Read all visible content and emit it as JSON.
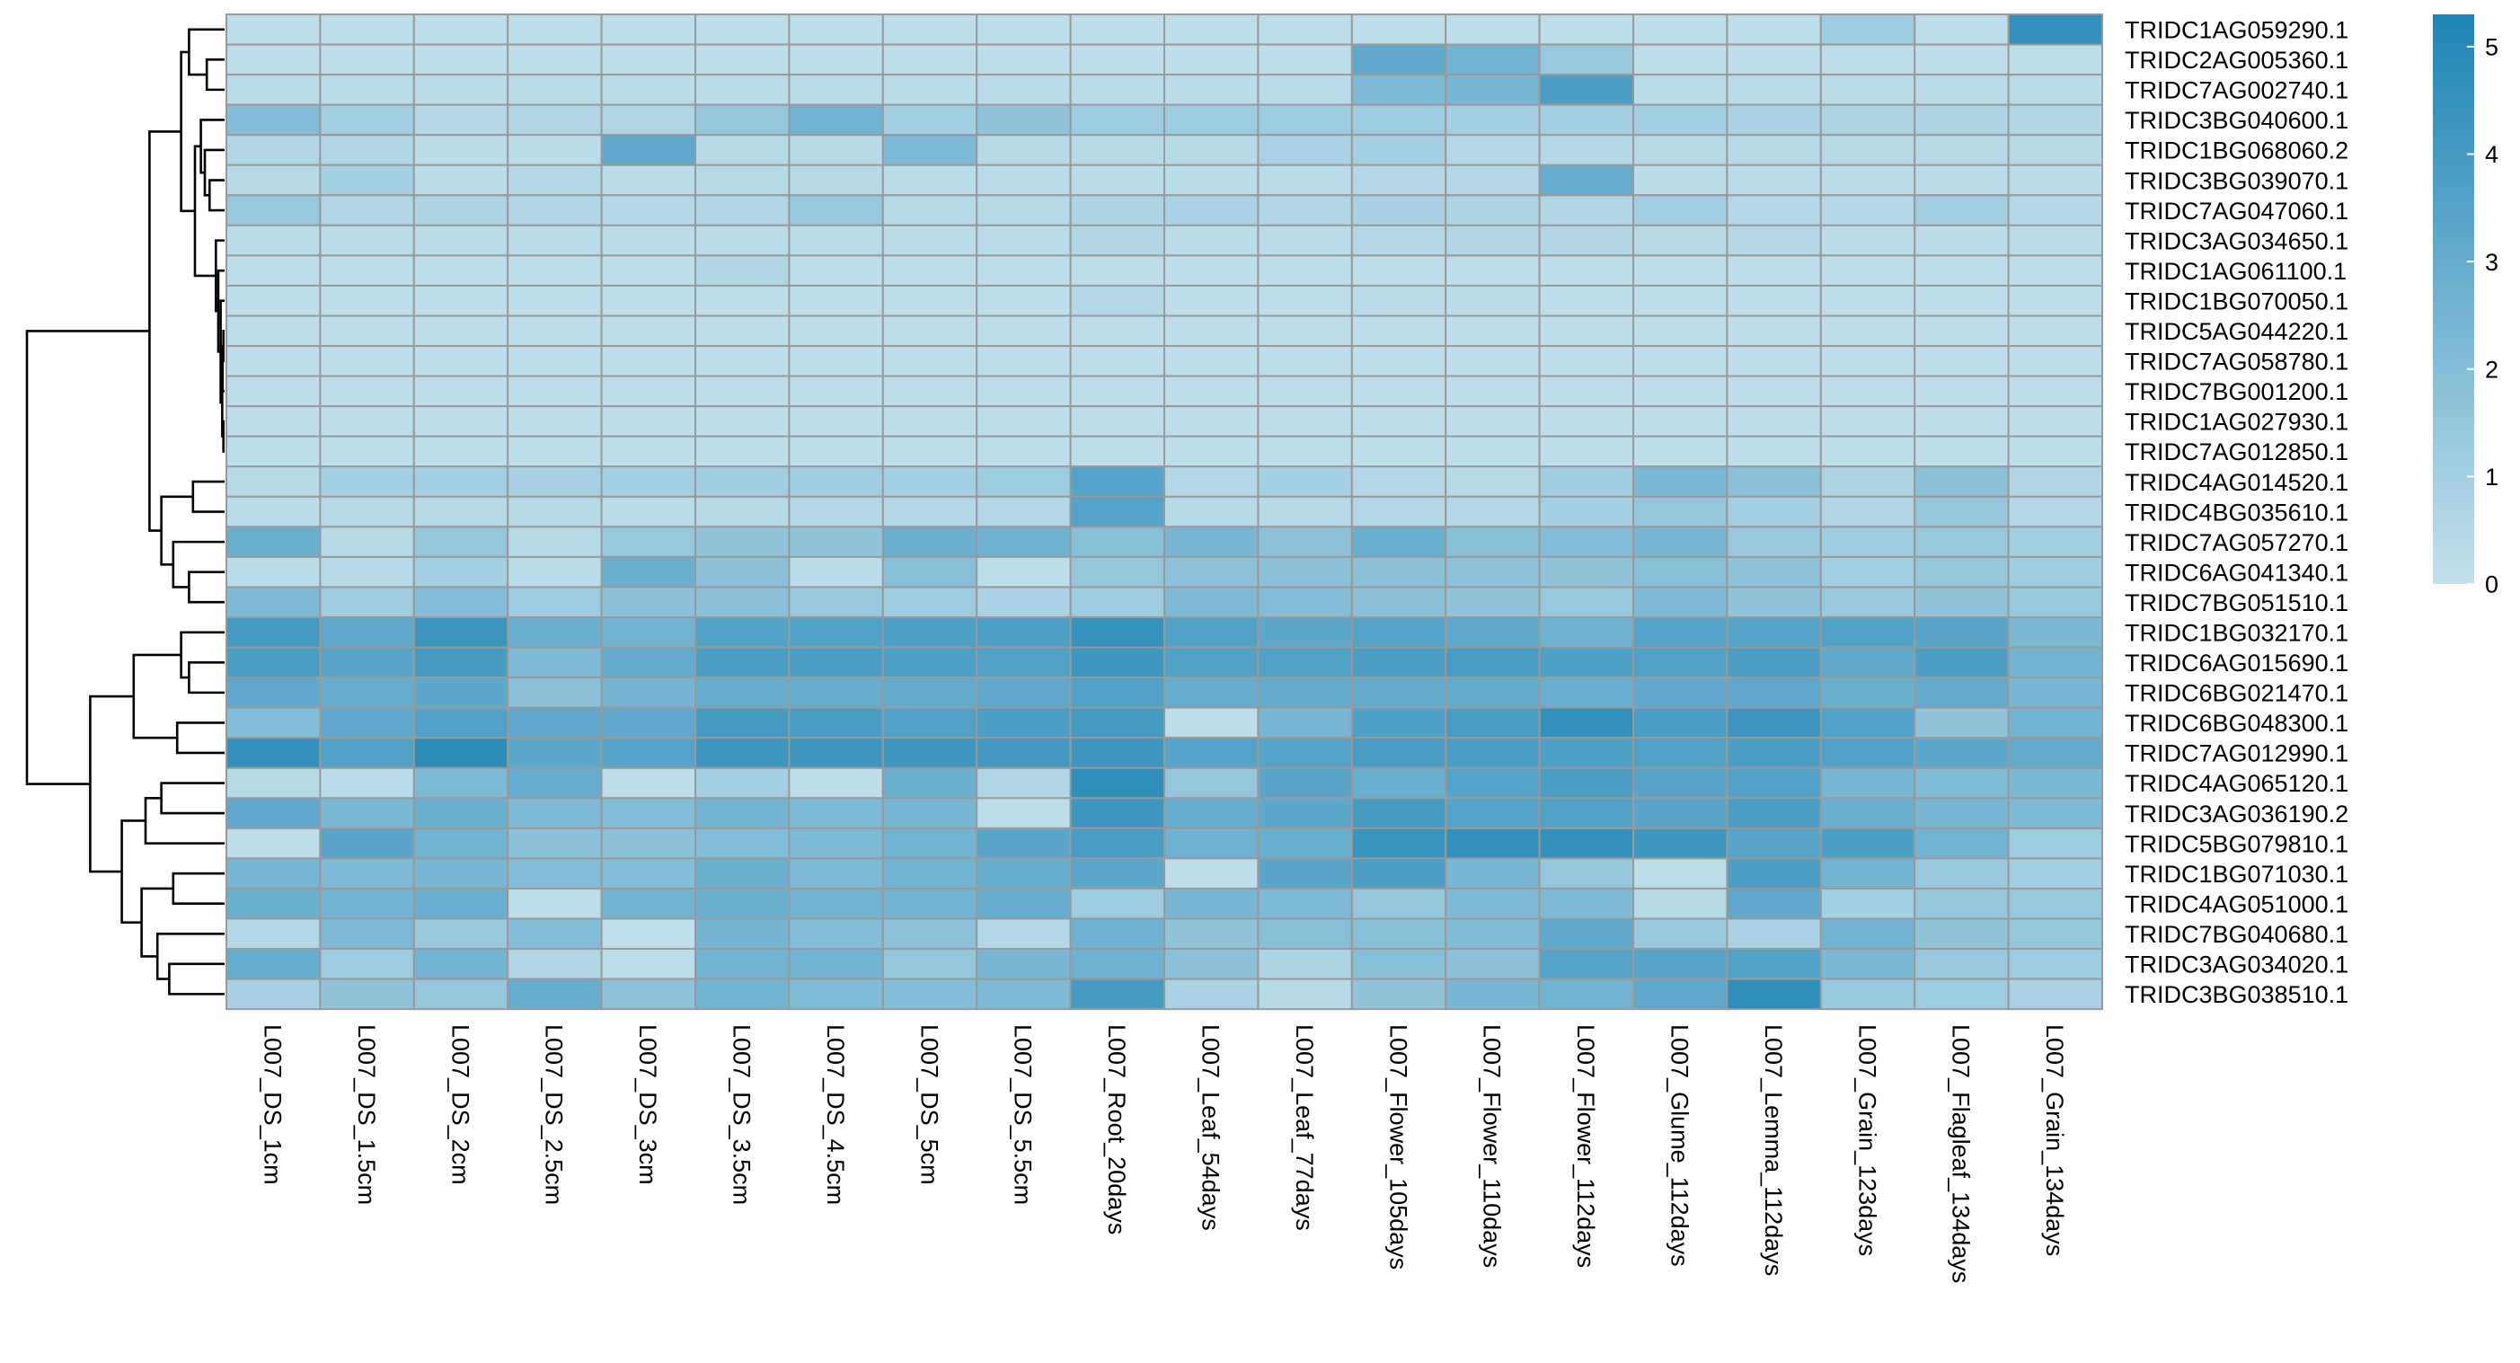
{
  "colors": {
    "low": "#c3e0ec",
    "high": "#1d84b5",
    "cell_border": "#999999",
    "dendrogram": "#000000"
  },
  "chart_data": {
    "type": "heatmap",
    "title": "",
    "columns": [
      "L007_DS_1cm",
      "L007_DS_1.5cm",
      "L007_DS_2cm",
      "L007_DS_2.5cm",
      "L007_DS_3cm",
      "L007_DS_3.5cm",
      "L007_DS_4.5cm",
      "L007_DS_5cm",
      "L007_DS_5.5cm",
      "L007_Root_20days",
      "L007_Leaf_54days",
      "L007_Leaf_77days",
      "L007_Flower_105days",
      "L007_Flower_110days",
      "L007_Flower_112days",
      "L007_Glume_112days",
      "L007_Lemma_112days",
      "L007_Grain_123days",
      "L007_Flagleaf_134days",
      "L007_Grain_134days"
    ],
    "rows": [
      "TRIDC1AG059290.1",
      "TRIDC2AG005360.1",
      "TRIDC7AG002740.1",
      "TRIDC3BG040600.1",
      "TRIDC1BG068060.2",
      "TRIDC3BG039070.1",
      "TRIDC7AG047060.1",
      "TRIDC3AG034650.1",
      "TRIDC1AG061100.1",
      "TRIDC1BG070050.1",
      "TRIDC5AG044220.1",
      "TRIDC7AG058780.1",
      "TRIDC7BG001200.1",
      "TRIDC1AG027930.1",
      "TRIDC7AG012850.1",
      "TRIDC4AG014520.1",
      "TRIDC4BG035610.1",
      "TRIDC7AG057270.1",
      "TRIDC6AG041340.1",
      "TRIDC7BG051510.1",
      "TRIDC1BG032170.1",
      "TRIDC6AG015690.1",
      "TRIDC6BG021470.1",
      "TRIDC6BG048300.1",
      "TRIDC7AG012990.1",
      "TRIDC4AG065120.1",
      "TRIDC3AG036190.2",
      "TRIDC5BG079810.1",
      "TRIDC1BG071030.1",
      "TRIDC4AG051000.1",
      "TRIDC7BG040680.1",
      "TRIDC3AG034020.1",
      "TRIDC3BG038510.1"
    ],
    "values": [
      [
        0.2,
        0.2,
        0.2,
        0.2,
        0.2,
        0.2,
        0.2,
        0.2,
        0.2,
        0.2,
        0.2,
        0.2,
        0.2,
        0.2,
        0.2,
        0.2,
        0.2,
        1.2,
        0.2,
        4.6
      ],
      [
        0.2,
        0.2,
        0.2,
        0.2,
        0.2,
        0.2,
        0.2,
        0.2,
        0.2,
        0.2,
        0.2,
        0.2,
        3.2,
        2.6,
        1.4,
        0.2,
        0.2,
        0.2,
        0.2,
        0.2
      ],
      [
        0.3,
        0.3,
        0.3,
        0.3,
        0.3,
        0.3,
        0.3,
        0.3,
        0.3,
        0.3,
        0.3,
        0.3,
        2.2,
        2.4,
        3.8,
        0.3,
        0.3,
        0.3,
        0.3,
        0.3
      ],
      [
        2.0,
        1.0,
        0.5,
        0.6,
        0.6,
        1.5,
        2.6,
        1.0,
        1.6,
        1.2,
        1.2,
        1.2,
        1.2,
        1.0,
        1.0,
        1.0,
        0.8,
        0.7,
        0.7,
        0.6
      ],
      [
        0.6,
        0.6,
        0.3,
        0.3,
        3.2,
        0.4,
        0.4,
        2.2,
        0.4,
        0.4,
        0.4,
        0.8,
        1.0,
        0.5,
        0.5,
        0.4,
        0.4,
        0.4,
        0.4,
        0.4
      ],
      [
        0.4,
        1.0,
        0.3,
        0.5,
        0.3,
        0.4,
        0.4,
        0.3,
        0.3,
        0.3,
        0.3,
        0.3,
        0.5,
        0.5,
        3.0,
        0.3,
        0.3,
        0.3,
        0.3,
        0.3
      ],
      [
        1.4,
        0.6,
        0.7,
        0.6,
        0.5,
        0.6,
        1.4,
        0.4,
        0.4,
        0.7,
        0.8,
        0.6,
        0.9,
        0.7,
        0.6,
        1.0,
        0.5,
        0.5,
        1.0,
        0.5
      ],
      [
        0.3,
        0.3,
        0.3,
        0.3,
        0.3,
        0.3,
        0.3,
        0.3,
        0.3,
        0.6,
        0.3,
        0.3,
        0.5,
        0.6,
        0.6,
        0.4,
        0.5,
        0.3,
        0.3,
        0.3
      ],
      [
        0.2,
        0.2,
        0.2,
        0.2,
        0.2,
        0.6,
        0.2,
        0.2,
        0.2,
        0.2,
        0.2,
        0.2,
        0.2,
        0.2,
        0.2,
        0.2,
        0.2,
        0.2,
        0.2,
        0.2
      ],
      [
        0.2,
        0.2,
        0.2,
        0.2,
        0.2,
        0.2,
        0.2,
        0.2,
        0.2,
        0.5,
        0.2,
        0.2,
        0.3,
        0.3,
        0.2,
        0.2,
        0.2,
        0.2,
        0.2,
        0.2
      ],
      [
        0.2,
        0.2,
        0.2,
        0.2,
        0.2,
        0.2,
        0.2,
        0.2,
        0.2,
        0.2,
        0.2,
        0.2,
        0.2,
        0.2,
        0.2,
        0.2,
        0.2,
        0.2,
        0.2,
        0.2
      ],
      [
        0.2,
        0.2,
        0.2,
        0.2,
        0.2,
        0.2,
        0.2,
        0.2,
        0.2,
        0.2,
        0.2,
        0.2,
        0.2,
        0.2,
        0.2,
        0.2,
        0.2,
        0.2,
        0.2,
        0.2
      ],
      [
        0.2,
        0.2,
        0.2,
        0.2,
        0.2,
        0.2,
        0.2,
        0.2,
        0.2,
        0.2,
        0.2,
        0.2,
        0.2,
        0.2,
        0.2,
        0.2,
        0.2,
        0.2,
        0.2,
        0.2
      ],
      [
        0.2,
        0.2,
        0.2,
        0.2,
        0.2,
        0.2,
        0.2,
        0.2,
        0.2,
        0.2,
        0.2,
        0.2,
        0.2,
        0.2,
        0.2,
        0.2,
        0.2,
        0.2,
        0.2,
        0.2
      ],
      [
        0.2,
        0.2,
        0.2,
        0.2,
        0.2,
        0.2,
        0.2,
        0.2,
        0.2,
        0.2,
        0.2,
        0.2,
        0.2,
        0.2,
        0.2,
        0.2,
        0.2,
        0.2,
        0.2,
        0.2
      ],
      [
        0.4,
        1.0,
        1.0,
        0.9,
        1.0,
        1.1,
        1.1,
        1.0,
        1.2,
        3.5,
        0.5,
        1.0,
        0.5,
        0.4,
        1.1,
        2.3,
        1.8,
        0.7,
        1.8,
        0.6
      ],
      [
        0.3,
        0.4,
        0.4,
        0.4,
        0.3,
        0.4,
        0.5,
        0.5,
        0.5,
        3.5,
        0.4,
        0.4,
        0.5,
        0.5,
        1.0,
        1.5,
        1.0,
        0.6,
        1.5,
        0.5
      ],
      [
        2.8,
        0.4,
        1.5,
        0.4,
        1.4,
        1.6,
        1.6,
        2.8,
        2.7,
        1.9,
        2.4,
        1.7,
        2.9,
        1.9,
        2.0,
        2.4,
        1.3,
        1.1,
        1.4,
        1.0
      ],
      [
        0.3,
        0.4,
        1.0,
        0.3,
        2.8,
        1.8,
        0.3,
        1.9,
        0.2,
        1.5,
        1.7,
        1.8,
        1.8,
        1.7,
        1.6,
        1.9,
        1.7,
        1.0,
        1.5,
        1.1
      ],
      [
        2.2,
        1.1,
        2.0,
        1.2,
        1.8,
        1.8,
        1.3,
        1.2,
        0.8,
        1.2,
        2.2,
        2.0,
        1.8,
        1.6,
        1.4,
        2.2,
        1.6,
        1.3,
        1.6,
        1.4
      ],
      [
        4.0,
        3.2,
        4.3,
        2.8,
        2.6,
        3.6,
        3.6,
        3.7,
        3.7,
        4.5,
        3.6,
        3.3,
        3.5,
        3.2,
        2.7,
        3.5,
        3.5,
        3.6,
        3.4,
        2.3
      ],
      [
        3.8,
        3.4,
        4.0,
        2.2,
        3.1,
        3.8,
        3.8,
        3.7,
        3.6,
        4.2,
        3.6,
        3.6,
        3.8,
        3.9,
        3.7,
        3.6,
        3.8,
        3.2,
        3.8,
        2.6
      ],
      [
        3.2,
        3.0,
        3.3,
        1.8,
        2.5,
        3.0,
        3.0,
        3.1,
        3.2,
        3.6,
        3.0,
        3.1,
        3.1,
        3.1,
        2.9,
        3.2,
        3.2,
        2.8,
        3.1,
        2.4
      ],
      [
        2.0,
        3.2,
        3.6,
        3.2,
        3.2,
        4.0,
        3.9,
        3.6,
        3.8,
        4.0,
        0.2,
        2.4,
        3.7,
        3.9,
        4.6,
        3.8,
        4.3,
        3.6,
        1.6,
        2.6
      ],
      [
        4.6,
        3.6,
        4.8,
        3.3,
        3.5,
        4.2,
        4.2,
        4.2,
        4.1,
        4.2,
        3.5,
        3.5,
        3.9,
        3.8,
        3.7,
        3.6,
        3.8,
        3.6,
        3.3,
        3.1
      ],
      [
        0.4,
        0.3,
        2.2,
        3.0,
        0.2,
        1.0,
        0.2,
        2.8,
        0.6,
        4.7,
        1.5,
        3.4,
        2.9,
        3.5,
        3.8,
        3.4,
        3.6,
        2.4,
        2.1,
        2.3
      ],
      [
        3.2,
        2.3,
        2.8,
        2.2,
        2.0,
        2.6,
        2.2,
        2.4,
        0.2,
        4.2,
        3.0,
        3.3,
        4.0,
        3.5,
        3.6,
        3.4,
        3.8,
        2.8,
        2.4,
        2.2
      ],
      [
        0.2,
        3.4,
        2.6,
        1.8,
        1.8,
        2.0,
        2.2,
        2.6,
        3.4,
        3.9,
        2.7,
        2.9,
        4.4,
        4.6,
        4.6,
        4.2,
        3.4,
        3.8,
        2.6,
        1.2
      ],
      [
        2.4,
        2.2,
        2.4,
        2.0,
        2.0,
        2.8,
        2.2,
        2.6,
        3.0,
        3.3,
        0.2,
        3.4,
        3.8,
        2.4,
        1.5,
        0.2,
        3.8,
        2.6,
        1.3,
        1.0
      ],
      [
        2.8,
        2.6,
        2.9,
        0.2,
        2.6,
        2.8,
        2.6,
        2.6,
        3.0,
        1.2,
        2.4,
        2.2,
        1.5,
        2.2,
        2.2,
        0.4,
        3.2,
        1.0,
        1.5,
        1.4
      ],
      [
        0.5,
        2.2,
        1.3,
        2.0,
        0.1,
        2.5,
        2.0,
        1.7,
        0.5,
        2.7,
        1.6,
        1.9,
        1.9,
        2.1,
        3.2,
        1.3,
        0.8,
        2.6,
        1.6,
        1.5
      ],
      [
        3.0,
        1.2,
        2.6,
        0.6,
        0.2,
        2.6,
        2.6,
        1.5,
        2.4,
        2.7,
        1.8,
        0.7,
        1.9,
        1.8,
        3.5,
        3.4,
        3.6,
        2.3,
        1.3,
        1.2
      ],
      [
        0.9,
        1.6,
        1.5,
        3.0,
        1.7,
        2.6,
        2.1,
        2.0,
        2.2,
        4.0,
        0.8,
        0.4,
        1.6,
        2.4,
        2.6,
        3.2,
        4.7,
        1.3,
        1.2,
        0.8
      ]
    ],
    "colorbar": {
      "range": [
        0,
        5.3
      ],
      "ticks": [
        0,
        1,
        2,
        3,
        4,
        5
      ]
    },
    "row_dendrogram": {
      "leaf_order": [
        0,
        1,
        2,
        3,
        4,
        5,
        6,
        7,
        8,
        9,
        10,
        11,
        12,
        13,
        14,
        15,
        16,
        17,
        18,
        19,
        20,
        21,
        22,
        23,
        24,
        25,
        26,
        27,
        28,
        29,
        30,
        31,
        32
      ],
      "merges": [
        {
          "a": "L10",
          "b": "L11",
          "h": 0.03
        },
        {
          "a": "L13",
          "b": "L14",
          "h": 0.03
        },
        {
          "a": "N0",
          "b": "L12",
          "h": 0.05
        },
        {
          "a": "N2",
          "b": "N1",
          "h": 0.06
        },
        {
          "a": "L9",
          "b": "N3",
          "h": 0.1
        },
        {
          "a": "L8",
          "b": "N4",
          "h": 0.16
        },
        {
          "a": "L7",
          "b": "N5",
          "h": 0.22
        },
        {
          "a": "L1",
          "b": "L2",
          "h": 0.45
        },
        {
          "a": "L0",
          "b": "N7",
          "h": 0.9
        },
        {
          "a": "L5",
          "b": "L6",
          "h": 0.38
        },
        {
          "a": "L4",
          "b": "N9",
          "h": 0.5
        },
        {
          "a": "L3",
          "b": "N10",
          "h": 0.6
        },
        {
          "a": "N11",
          "b": "N6",
          "h": 0.75
        },
        {
          "a": "N12",
          "b": "N8",
          "h": 1.1
        },
        {
          "a": "L15",
          "b": "L16",
          "h": 0.8
        },
        {
          "a": "L18",
          "b": "L19",
          "h": 0.9
        },
        {
          "a": "L17",
          "b": "N15",
          "h": 1.3
        },
        {
          "a": "N14",
          "b": "N16",
          "h": 1.6
        },
        {
          "a": "N17",
          "b": "N13",
          "h": 1.9
        },
        {
          "a": "L21",
          "b": "L22",
          "h": 0.9
        },
        {
          "a": "L20",
          "b": "N19",
          "h": 1.1
        },
        {
          "a": "L23",
          "b": "L24",
          "h": 1.2
        },
        {
          "a": "N20",
          "b": "N21",
          "h": 2.3
        },
        {
          "a": "L25",
          "b": "L26",
          "h": 1.6
        },
        {
          "a": "N23",
          "b": "L27",
          "h": 2.0
        },
        {
          "a": "L28",
          "b": "L29",
          "h": 1.3
        },
        {
          "a": "L31",
          "b": "L32",
          "h": 1.4
        },
        {
          "a": "L30",
          "b": "N26",
          "h": 1.7
        },
        {
          "a": "N25",
          "b": "N27",
          "h": 2.1
        },
        {
          "a": "N24",
          "b": "N28",
          "h": 2.6
        },
        {
          "a": "N22",
          "b": "N29",
          "h": 3.4
        },
        {
          "a": "N18",
          "b": "N30",
          "h": 5.0
        }
      ]
    }
  }
}
